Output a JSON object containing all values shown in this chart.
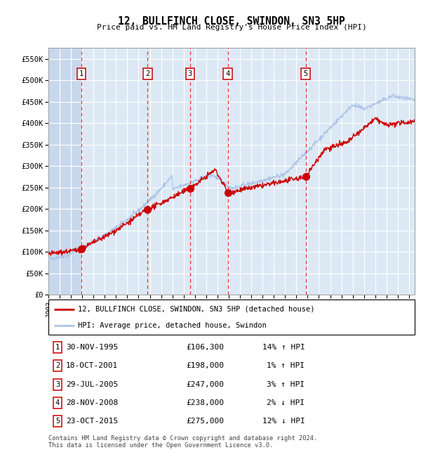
{
  "title": "12, BULLFINCH CLOSE, SWINDON, SN3 5HP",
  "subtitle": "Price paid vs. HM Land Registry's House Price Index (HPI)",
  "hpi_label": "HPI: Average price, detached house, Swindon",
  "price_label": "12, BULLFINCH CLOSE, SWINDON, SN3 5HP (detached house)",
  "footer": "Contains HM Land Registry data © Crown copyright and database right 2024.\nThis data is licensed under the Open Government Licence v3.0.",
  "ylim": [
    0,
    575000
  ],
  "yticks": [
    0,
    50000,
    100000,
    150000,
    200000,
    250000,
    300000,
    350000,
    400000,
    450000,
    500000,
    550000
  ],
  "ytick_labels": [
    "£0",
    "£50K",
    "£100K",
    "£150K",
    "£200K",
    "£250K",
    "£300K",
    "£350K",
    "£400K",
    "£450K",
    "£500K",
    "£550K"
  ],
  "xlim_start": 1993.0,
  "xlim_end": 2025.5,
  "transactions": [
    {
      "num": 1,
      "date": "30-NOV-1995",
      "year": 1995.92,
      "price": 106300,
      "pct": "14%",
      "dir": "↑"
    },
    {
      "num": 2,
      "date": "18-OCT-2001",
      "year": 2001.8,
      "price": 198000,
      "pct": "1%",
      "dir": "↑"
    },
    {
      "num": 3,
      "date": "29-JUL-2005",
      "year": 2005.57,
      "price": 247000,
      "pct": "3%",
      "dir": "↑"
    },
    {
      "num": 4,
      "date": "28-NOV-2008",
      "year": 2008.92,
      "price": 238000,
      "pct": "2%",
      "dir": "↓"
    },
    {
      "num": 5,
      "date": "23-OCT-2015",
      "year": 2015.82,
      "price": 275000,
      "pct": "12%",
      "dir": "↓"
    }
  ],
  "hpi_color": "#aec6e8",
  "price_color": "#cc0000",
  "plot_bg": "#dce9f5",
  "hatch_bg": "#c8d8ec",
  "grid_color": "#ffffff",
  "vline_color": "#ee3333",
  "marker_color": "#cc0000",
  "box_color": "#cc0000",
  "noise_seed": 42,
  "noise_hpi": 2500,
  "noise_prop": 3000
}
